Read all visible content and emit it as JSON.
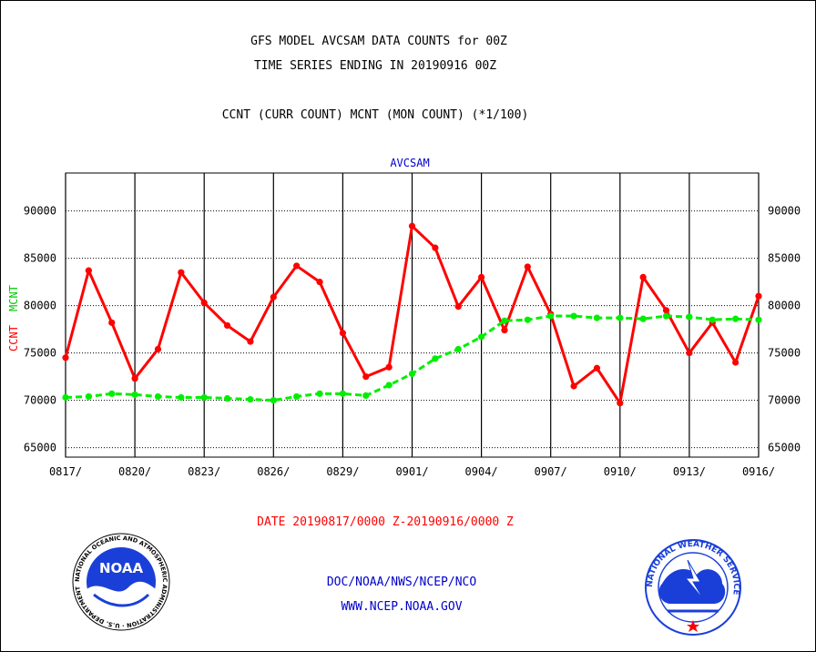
{
  "header": {
    "title_line1": "GFS MODEL AVCSAM DATA COUNTS for 00Z",
    "title_line2": "TIME SERIES ENDING IN 20190916 00Z",
    "subtitle": "CCNT (CURR COUNT) MCNT (MON COUNT) (*1/100)"
  },
  "footer": {
    "date_range": "DATE 20190817/0000 Z-20190916/0000 Z",
    "credit_line1": "DOC/NOAA/NWS/NCEP/NCO",
    "credit_line2": "WWW.NCEP.NOAA.GOV"
  },
  "logos": {
    "left": {
      "icon": "noaa-logo",
      "text": "NOAA",
      "ring_text": "NATIONAL OCEANIC AND ATMOSPHERIC ADMINISTRATION · U.S. DEPARTMENT OF COMMERCE"
    },
    "right": {
      "icon": "nws-logo",
      "ring_text": "NATIONAL WEATHER SERVICE"
    }
  },
  "chart_data": {
    "type": "line",
    "title": "AVCSAM",
    "ylabel_left": [
      "CCNT",
      "MCNT"
    ],
    "ylim": [
      64000,
      94000
    ],
    "yticks": [
      65000,
      70000,
      75000,
      80000,
      85000,
      90000
    ],
    "ytick_labels": [
      "65000",
      "70000",
      "75000",
      "80000",
      "85000",
      "90000"
    ],
    "xlim": [
      0,
      30
    ],
    "xticks": [
      0,
      3,
      6,
      9,
      12,
      15,
      18,
      21,
      24,
      27,
      30
    ],
    "xtick_labels": [
      "0817/",
      "0820/",
      "0823/",
      "0826/",
      "0829/",
      "0901/",
      "0904/",
      "0907/",
      "0910/",
      "0913/",
      "0916/"
    ],
    "grid": true,
    "colors": {
      "ccnt": "#ff0000",
      "mcnt": "#00ee00",
      "axis_title": "#0000cc"
    },
    "series": [
      {
        "name": "CCNT",
        "color": "#ff0000",
        "style": "solid",
        "values": [
          74500,
          83700,
          78200,
          72300,
          75400,
          83500,
          80300,
          77900,
          76200,
          80900,
          84200,
          82500,
          77100,
          72500,
          73500,
          88400,
          86100,
          79900,
          83000,
          77400,
          84100,
          79100,
          71500,
          73400,
          69700,
          83000,
          79500,
          75000,
          78200,
          74000,
          81000
        ]
      },
      {
        "name": "MCNT",
        "color": "#00ee00",
        "style": "dashed",
        "values": [
          70300,
          70400,
          70700,
          70600,
          70400,
          70300,
          70300,
          70200,
          70100,
          70000,
          70400,
          70700,
          70700,
          70500,
          71600,
          72800,
          74400,
          75400,
          76700,
          78400,
          78500,
          78900,
          78900,
          78700,
          78700,
          78600,
          78900,
          78800,
          78500,
          78600,
          78500
        ]
      }
    ]
  }
}
